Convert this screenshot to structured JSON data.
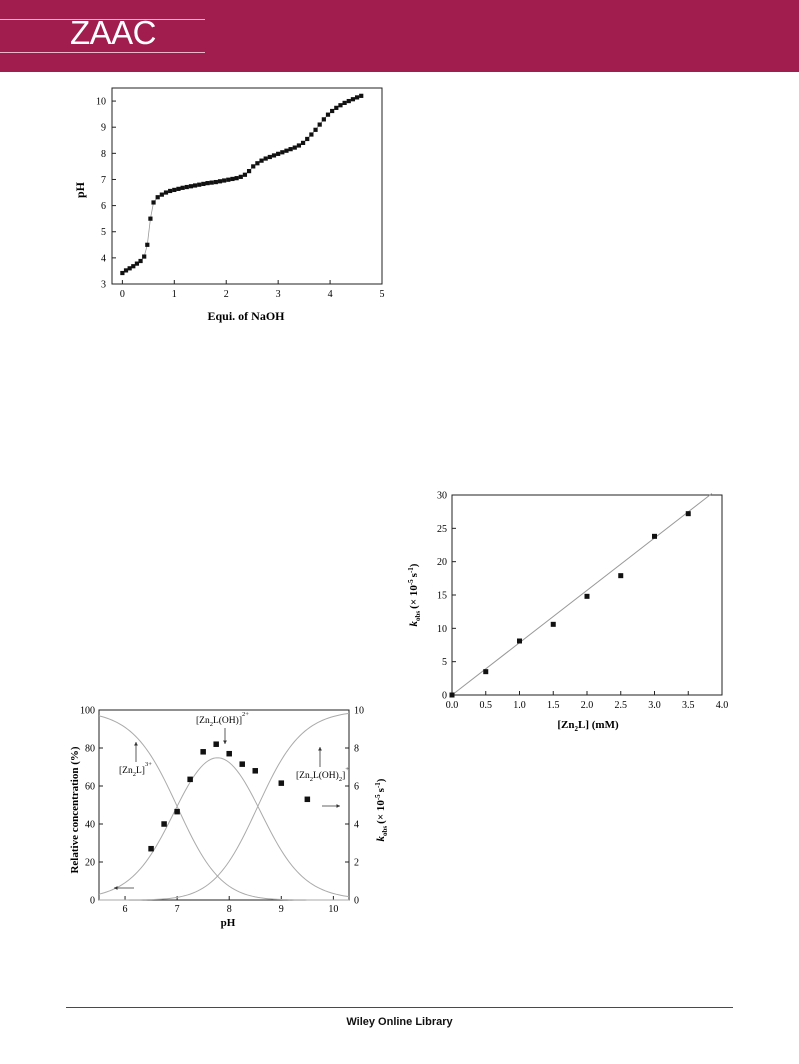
{
  "header": {
    "logo_text": "ZAAC",
    "bar_color": "#a11d4e"
  },
  "footer": {
    "text": "Wiley Online Library"
  },
  "chart_data": [
    {
      "type": "scatter",
      "xlabel": "Equi. of NaOH",
      "ylabel": "pH",
      "xlim": [
        -0.2,
        5.0
      ],
      "ylim": [
        3,
        10.5
      ],
      "xticks": [
        0,
        1,
        2,
        3,
        4,
        5
      ],
      "yticks": [
        3,
        4,
        5,
        6,
        7,
        8,
        9,
        10
      ],
      "points": [
        [
          0.0,
          3.42
        ],
        [
          0.07,
          3.52
        ],
        [
          0.14,
          3.6
        ],
        [
          0.21,
          3.68
        ],
        [
          0.28,
          3.78
        ],
        [
          0.35,
          3.88
        ],
        [
          0.42,
          4.05
        ],
        [
          0.48,
          4.5
        ],
        [
          0.54,
          5.5
        ],
        [
          0.6,
          6.12
        ],
        [
          0.68,
          6.32
        ],
        [
          0.76,
          6.42
        ],
        [
          0.84,
          6.5
        ],
        [
          0.92,
          6.56
        ],
        [
          1.0,
          6.6
        ],
        [
          1.08,
          6.64
        ],
        [
          1.16,
          6.68
        ],
        [
          1.24,
          6.71
        ],
        [
          1.32,
          6.74
        ],
        [
          1.4,
          6.77
        ],
        [
          1.48,
          6.8
        ],
        [
          1.56,
          6.83
        ],
        [
          1.64,
          6.86
        ],
        [
          1.72,
          6.88
        ],
        [
          1.8,
          6.9
        ],
        [
          1.88,
          6.93
        ],
        [
          1.96,
          6.96
        ],
        [
          2.04,
          6.99
        ],
        [
          2.12,
          7.02
        ],
        [
          2.2,
          7.05
        ],
        [
          2.28,
          7.1
        ],
        [
          2.36,
          7.18
        ],
        [
          2.44,
          7.32
        ],
        [
          2.52,
          7.5
        ],
        [
          2.6,
          7.62
        ],
        [
          2.68,
          7.72
        ],
        [
          2.76,
          7.8
        ],
        [
          2.84,
          7.86
        ],
        [
          2.92,
          7.92
        ],
        [
          3.0,
          7.98
        ],
        [
          3.08,
          8.04
        ],
        [
          3.16,
          8.1
        ],
        [
          3.24,
          8.16
        ],
        [
          3.32,
          8.22
        ],
        [
          3.4,
          8.3
        ],
        [
          3.48,
          8.4
        ],
        [
          3.56,
          8.55
        ],
        [
          3.64,
          8.72
        ],
        [
          3.72,
          8.9
        ],
        [
          3.8,
          9.1
        ],
        [
          3.88,
          9.3
        ],
        [
          3.96,
          9.48
        ],
        [
          4.04,
          9.62
        ],
        [
          4.12,
          9.74
        ],
        [
          4.2,
          9.84
        ],
        [
          4.28,
          9.93
        ],
        [
          4.36,
          10.0
        ],
        [
          4.44,
          10.07
        ],
        [
          4.52,
          10.14
        ],
        [
          4.6,
          10.2
        ]
      ]
    },
    {
      "type": "line",
      "xlabel": "pH",
      "ylabel": "Relative concentration (%)",
      "y2label": "k_obs (× 10^-5 s^-1)",
      "xlim": [
        5.5,
        10.3
      ],
      "ylim": [
        0,
        100
      ],
      "y2lim": [
        0,
        10
      ],
      "xticks": [
        6,
        7,
        8,
        9,
        10
      ],
      "yticks": [
        0,
        20,
        40,
        60,
        80,
        100
      ],
      "y2ticks": [
        0,
        2,
        4,
        6,
        8,
        10
      ],
      "species_pKa": [
        7.0,
        8.55
      ],
      "series": [
        {
          "name": "[Zn2L]3+",
          "kind": "curve"
        },
        {
          "name": "[Zn2L(OH)]2+",
          "kind": "curve"
        },
        {
          "name": "[Zn2L(OH)2]+",
          "kind": "curve"
        },
        {
          "name": "k_obs",
          "kind": "points",
          "axis": "right",
          "points": [
            [
              6.5,
              2.7
            ],
            [
              6.75,
              4.0
            ],
            [
              7.0,
              4.65
            ],
            [
              7.25,
              6.35
            ],
            [
              7.5,
              7.8
            ],
            [
              7.75,
              8.2
            ],
            [
              8.0,
              7.7
            ],
            [
              8.25,
              7.15
            ],
            [
              8.5,
              6.8
            ],
            [
              9.0,
              6.15
            ],
            [
              9.5,
              5.3
            ]
          ]
        }
      ],
      "annotations": {
        "zn2l": {
          "base": "[Zn",
          "sub1": "2",
          "mid": "L]",
          "sup": "3+"
        },
        "zn2loh": {
          "base": "[Zn",
          "sub1": "2",
          "mid": "L(OH)]",
          "sup": "2+"
        },
        "zn2loh2": {
          "base": "[Zn",
          "sub1": "2",
          "mid": "L(OH)",
          "sub2": "2",
          "end": "]",
          "sup": "+"
        }
      }
    },
    {
      "type": "scatter",
      "xlabel": "[Zn2L] (mM)",
      "ylabel": "k_obs (× 10^-5 s^-1)",
      "xlim": [
        0,
        4.0
      ],
      "ylim": [
        0,
        30
      ],
      "xticks": [
        "0.0",
        "0.5",
        "1.0",
        "1.5",
        "2.0",
        "2.5",
        "3.0",
        "3.5",
        "4.0"
      ],
      "yticks": [
        0,
        5,
        10,
        15,
        20,
        25,
        30
      ],
      "points": [
        [
          0.0,
          0.0
        ],
        [
          0.5,
          3.5
        ],
        [
          1.0,
          8.1
        ],
        [
          1.5,
          10.6
        ],
        [
          2.0,
          14.8
        ],
        [
          2.5,
          17.9
        ],
        [
          3.0,
          23.8
        ],
        [
          3.5,
          27.2
        ]
      ],
      "fit_line": {
        "slope": 7.85,
        "intercept": 0.0,
        "x_end": 3.85
      }
    }
  ],
  "labels": {
    "c1_xlabel": "Equi. of NaOH",
    "c1_ylabel": "pH",
    "c2_xlabel": "pH",
    "c2_ylabel": "Relative concentration (%)",
    "c2_y2_k": "k",
    "c2_y2_obs": "obs",
    "c2_y2_rest1": "(× 10",
    "c2_y2_exp1": "-5",
    "c2_y2_rest2": "s",
    "c2_y2_exp2": "-1",
    "c2_y2_rest3": ")",
    "c3_xlabel_a": "[Zn",
    "c3_xlabel_sub": "2",
    "c3_xlabel_b": "L] (mM)",
    "c3_y_k": "k",
    "c3_y_obs": "obs",
    "c3_y_rest1": "(× 10",
    "c3_y_exp1": "-5",
    "c3_y_rest2": "s",
    "c3_y_exp2": "-1",
    "c3_y_rest3": ")"
  }
}
